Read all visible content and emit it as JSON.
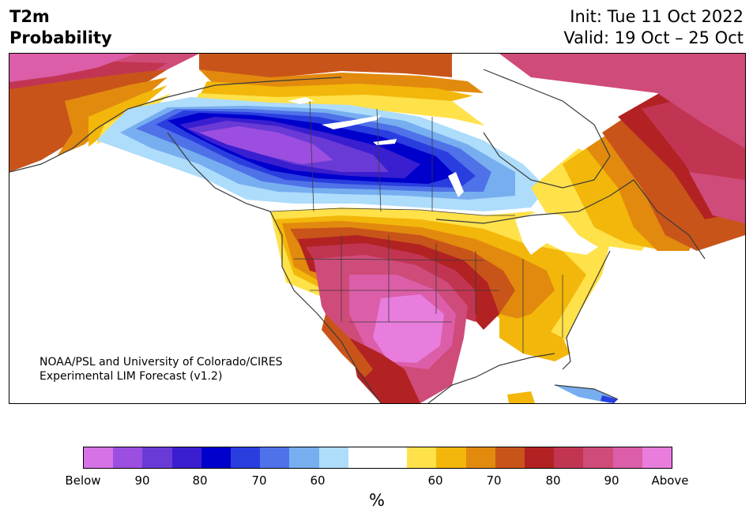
{
  "header": {
    "title_line1": "T2m",
    "title_line2": "Probability",
    "init": "Init: Tue 11 Oct 2022",
    "valid": "Valid: 19 Oct – 25 Oct"
  },
  "credit": {
    "line1": "NOAA/PSL and University of Colorado/CIRES",
    "line2": "Experimental LIM Forecast (v1.2)"
  },
  "colorbar": {
    "colors": [
      "#d672e6",
      "#9b4ee0",
      "#6a3ad6",
      "#3a1fd0",
      "#0000cc",
      "#2a3ee0",
      "#4f72e8",
      "#77aef0",
      "#aedcfb",
      "#ffffff",
      "#ffffff",
      "#ffe14a",
      "#f2b70a",
      "#e28a0e",
      "#c9541a",
      "#b22222",
      "#c23552",
      "#cf4b7a",
      "#dc5ea8",
      "#e87ddd"
    ],
    "ticks": [
      "Below",
      "90",
      "80",
      "70",
      "60",
      "60",
      "70",
      "80",
      "90",
      "Above"
    ],
    "unit": "%"
  },
  "palette": {
    "below90": "#9b4ee0",
    "below80": "#3a1fd0",
    "below70": "#0000cc",
    "below60": "#4f72e8",
    "below_light": "#aedcfb",
    "near": "#ffffff",
    "above60": "#ffe14a",
    "above65": "#f2b70a",
    "above70": "#e28a0e",
    "above75": "#c9541a",
    "above80": "#b22222",
    "above85": "#c23552",
    "above90": "#cf4b7a",
    "above95": "#dc5ea8",
    "above_max": "#e87ddd"
  }
}
